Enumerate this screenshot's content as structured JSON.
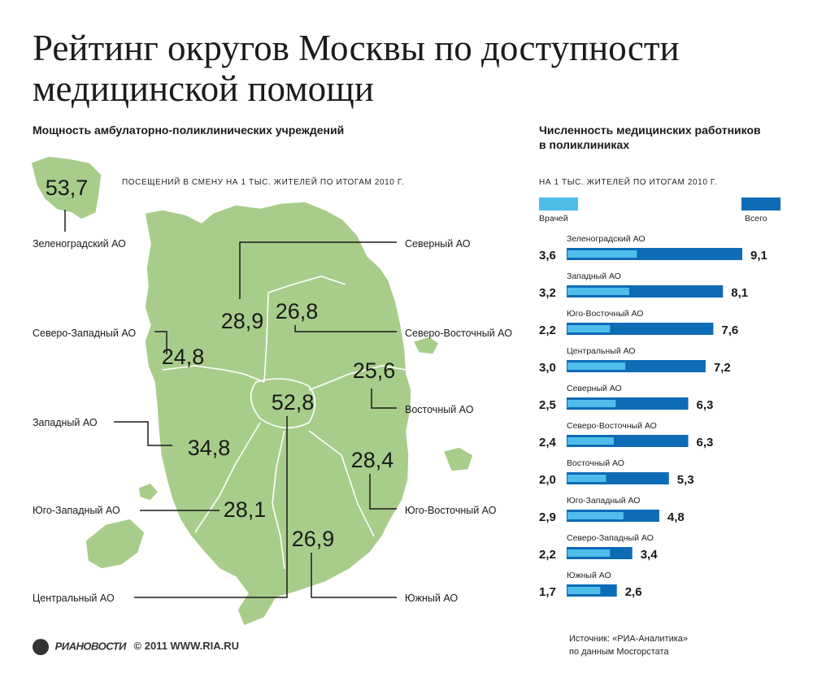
{
  "title_lines": [
    "Рейтинг округов Москвы по доступности",
    "медицинской помощи"
  ],
  "left_heading": "Мощность  амбулаторно-поликлинических учреждений",
  "left_subheading": "посещений в смену на 1 тыс. жителей по итогам 2010 г.",
  "right_heading_lines": [
    "Численность медицинских работников",
    "в поликлиниках"
  ],
  "right_subheading": "на 1 тыс. жителей по итогам 2010 г.",
  "legend": {
    "doctors": "Врачей",
    "total": "Всего"
  },
  "colors": {
    "map_fill": "#a8cd8a",
    "map_border": "#ffffff",
    "doctors": "#4fbde9",
    "total": "#0e6bb6",
    "text": "#1a1a1a"
  },
  "footer": {
    "logo": "РИАНОВОСТИ",
    "copyright": "© 2011 WWW.RIA.RU"
  },
  "source_lines": [
    "Источник: «РИА-Аналитика»",
    "по данным Мосгорстата"
  ],
  "map_okrugs": [
    {
      "name": "Зеленоградский АО",
      "value": "53,7"
    },
    {
      "name": "Северный АО",
      "value": "28,9"
    },
    {
      "name": "Северо-Восточный АО",
      "value": "26,8"
    },
    {
      "name": "Северо-Западный АО",
      "value": "24,8"
    },
    {
      "name": "Восточный АО",
      "value": "25,6"
    },
    {
      "name": "Центральный АО",
      "value": "52,8"
    },
    {
      "name": "Западный АО",
      "value": "34,8"
    },
    {
      "name": "Юго-Восточный АО",
      "value": "28,4"
    },
    {
      "name": "Юго-Западный АО",
      "value": "28,1"
    },
    {
      "name": "Южный АО",
      "value": "26,9"
    }
  ],
  "chart_data": [
    {
      "type": "table",
      "title": "Мощность  амбулаторно-поликлинических учреждений",
      "subtitle": "посещений в смену на 1 тыс. жителей по итогам 2010 г.",
      "categories": [
        "Зеленоградский АО",
        "Северный АО",
        "Северо-Восточный АО",
        "Северо-Западный АО",
        "Восточный АО",
        "Центральный АО",
        "Западный АО",
        "Юго-Восточный АО",
        "Юго-Западный АО",
        "Южный АО"
      ],
      "values": [
        53.7,
        28.9,
        26.8,
        24.8,
        25.6,
        52.8,
        34.8,
        28.4,
        28.1,
        26.9
      ]
    },
    {
      "type": "bar",
      "title": "Численность медицинских работников в поликлиниках",
      "subtitle": "на 1 тыс. жителей по итогам 2010 г.",
      "categories": [
        "Зеленоградский АО",
        "Западный АО",
        "Юго-Восточный АО",
        "Центральный АО",
        "Северный АО",
        "Северо-Восточный АО",
        "Восточный АО",
        "Юго-Западный АО",
        "Северо-Западный АО",
        "Южный АО"
      ],
      "series": [
        {
          "name": "Врачей",
          "values": [
            3.6,
            3.2,
            2.2,
            3.0,
            2.5,
            2.4,
            2.0,
            2.9,
            2.2,
            1.7
          ],
          "labels": [
            "3,6",
            "3,2",
            "2,2",
            "3,0",
            "2,5",
            "2,4",
            "2,0",
            "2,9",
            "2,2",
            "1,7"
          ]
        },
        {
          "name": "Всего",
          "values": [
            9.1,
            8.1,
            7.6,
            7.2,
            6.3,
            6.3,
            5.3,
            4.8,
            3.4,
            2.6
          ],
          "labels": [
            "9,1",
            "8,1",
            "7,6",
            "7,2",
            "6,3",
            "6,3",
            "5,3",
            "4,8",
            "3,4",
            "2,6"
          ]
        }
      ],
      "orientation": "horizontal",
      "xlim": [
        0,
        9.1
      ]
    }
  ]
}
